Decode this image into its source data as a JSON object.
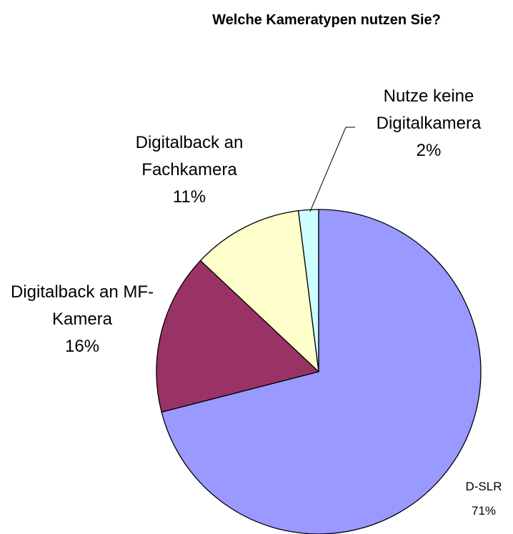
{
  "chart_data": {
    "type": "pie",
    "title": "Welche Kameratypen nutzen Sie?",
    "categories": [
      "D-SLR",
      "Digitalback an MF-Kamera",
      "Digitalback an Fachkamera",
      "Nutze keine Digitalkamera"
    ],
    "values": [
      71,
      16,
      11,
      2
    ],
    "value_labels": [
      "71%",
      "16%",
      "11%",
      "2%"
    ],
    "colors": [
      "#9999ff",
      "#993366",
      "#ffffcc",
      "#ccffff"
    ]
  }
}
